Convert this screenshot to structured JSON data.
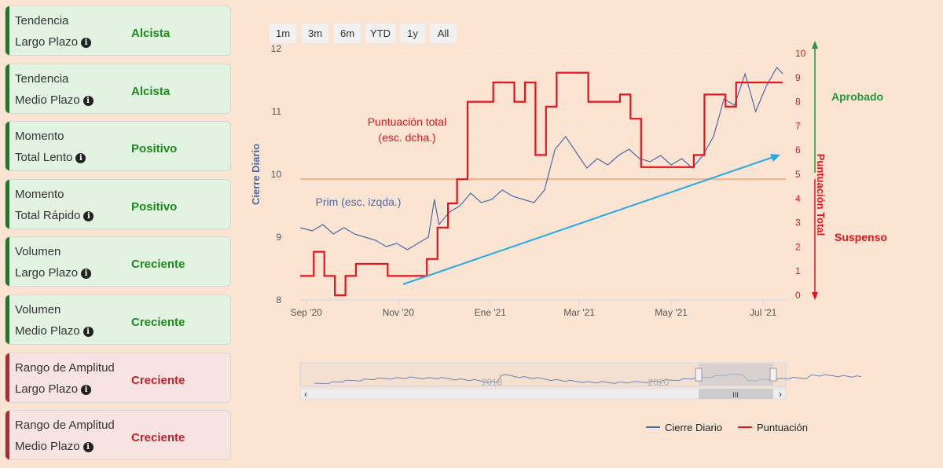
{
  "cards": [
    {
      "line1": "Tendencia",
      "line2": "Largo Plazo",
      "status": "Alcista",
      "tone": "green"
    },
    {
      "line1": "Tendencia",
      "line2": "Medio Plazo",
      "status": "Alcista",
      "tone": "green"
    },
    {
      "line1": "Momento",
      "line2": "Total Lento",
      "status": "Positivo",
      "tone": "green"
    },
    {
      "line1": "Momento",
      "line2": "Total Rápido",
      "status": "Positivo",
      "tone": "green"
    },
    {
      "line1": "Volumen",
      "line2": "Largo Plazo",
      "status": "Creciente",
      "tone": "green"
    },
    {
      "line1": "Volumen",
      "line2": "Medio Plazo",
      "status": "Creciente",
      "tone": "green"
    },
    {
      "line1": "Rango de Amplitud",
      "line2": "Largo Plazo",
      "status": "Creciente",
      "tone": "red"
    },
    {
      "line1": "Rango de Amplitud",
      "line2": "Medio Plazo",
      "status": "Creciente",
      "tone": "red"
    }
  ],
  "range_buttons": [
    "1m",
    "3m",
    "6m",
    "YTD",
    "1y",
    "All"
  ],
  "side_labels": {
    "approved": "Aprobado",
    "failed": "Suspenso"
  },
  "colors": {
    "price": "#4a6aa8",
    "score": "#e3141e",
    "threshold": "#f0b48a",
    "trend": "#27a9e8",
    "approved": "#1f9a3c",
    "failed": "#e3141e"
  },
  "chart_data": {
    "type": "line",
    "x_ticks": [
      "Sep '20",
      "Nov '20",
      "Ene '21",
      "Mar '21",
      "May '21",
      "Jul '21"
    ],
    "y_left": {
      "label": "Cierre Diario",
      "range": [
        8,
        12
      ],
      "ticks": [
        8,
        9,
        10,
        11,
        12
      ]
    },
    "y_right": {
      "label": "Puntuación Total",
      "range": [
        0,
        10
      ],
      "ticks": [
        0,
        1,
        2,
        3,
        4,
        5,
        6,
        7,
        8,
        9,
        10
      ]
    },
    "threshold_score": 4.8,
    "annotations": [
      {
        "text": "Puntuación total",
        "text2": "(esc. dcha.)"
      },
      {
        "text": "Prim (esc. izqda.)"
      }
    ],
    "series": [
      {
        "name": "Cierre Diario",
        "axis": "left",
        "points": [
          [
            "2020-08-28",
            9.15
          ],
          [
            "2020-09-05",
            9.1
          ],
          [
            "2020-09-12",
            9.2
          ],
          [
            "2020-09-19",
            9.05
          ],
          [
            "2020-09-26",
            9.15
          ],
          [
            "2020-10-03",
            9.05
          ],
          [
            "2020-10-10",
            9.0
          ],
          [
            "2020-10-17",
            8.95
          ],
          [
            "2020-10-24",
            8.85
          ],
          [
            "2020-10-31",
            8.9
          ],
          [
            "2020-11-07",
            8.8
          ],
          [
            "2020-11-14",
            8.9
          ],
          [
            "2020-11-21",
            9.0
          ],
          [
            "2020-11-25",
            9.6
          ],
          [
            "2020-11-28",
            9.2
          ],
          [
            "2020-12-05",
            9.4
          ],
          [
            "2020-12-12",
            9.5
          ],
          [
            "2020-12-19",
            9.7
          ],
          [
            "2020-12-26",
            9.55
          ],
          [
            "2021-01-02",
            9.6
          ],
          [
            "2021-01-09",
            9.75
          ],
          [
            "2021-01-16",
            9.65
          ],
          [
            "2021-01-23",
            9.6
          ],
          [
            "2021-01-30",
            9.55
          ],
          [
            "2021-02-06",
            9.75
          ],
          [
            "2021-02-13",
            10.4
          ],
          [
            "2021-02-20",
            10.6
          ],
          [
            "2021-02-27",
            10.35
          ],
          [
            "2021-03-06",
            10.1
          ],
          [
            "2021-03-13",
            10.25
          ],
          [
            "2021-03-20",
            10.15
          ],
          [
            "2021-03-27",
            10.3
          ],
          [
            "2021-04-03",
            10.4
          ],
          [
            "2021-04-10",
            10.25
          ],
          [
            "2021-04-17",
            10.2
          ],
          [
            "2021-04-24",
            10.3
          ],
          [
            "2021-05-01",
            10.15
          ],
          [
            "2021-05-08",
            10.25
          ],
          [
            "2021-05-15",
            10.1
          ],
          [
            "2021-05-22",
            10.3
          ],
          [
            "2021-05-29",
            10.6
          ],
          [
            "2021-06-05",
            11.2
          ],
          [
            "2021-06-12",
            11.1
          ],
          [
            "2021-06-19",
            11.6
          ],
          [
            "2021-06-26",
            11.0
          ],
          [
            "2021-07-03",
            11.4
          ],
          [
            "2021-07-10",
            11.7
          ],
          [
            "2021-07-14",
            11.6
          ]
        ]
      },
      {
        "name": "Puntuación",
        "axis": "right",
        "points": [
          [
            "2020-08-28",
            0.8
          ],
          [
            "2020-09-06",
            1.8
          ],
          [
            "2020-09-13",
            0.8
          ],
          [
            "2020-09-20",
            0
          ],
          [
            "2020-09-27",
            0.8
          ],
          [
            "2020-10-04",
            1.3
          ],
          [
            "2020-10-25",
            0.8
          ],
          [
            "2020-11-15",
            0.8
          ],
          [
            "2020-11-20",
            1.5
          ],
          [
            "2020-11-27",
            2.8
          ],
          [
            "2020-12-04",
            3.8
          ],
          [
            "2020-12-10",
            4.8
          ],
          [
            "2020-12-17",
            8
          ],
          [
            "2021-01-03",
            8.8
          ],
          [
            "2021-01-17",
            8
          ],
          [
            "2021-01-24",
            8.8
          ],
          [
            "2021-01-31",
            5.8
          ],
          [
            "2021-02-07",
            7.8
          ],
          [
            "2021-02-14",
            9.2
          ],
          [
            "2021-03-07",
            8
          ],
          [
            "2021-03-28",
            8.3
          ],
          [
            "2021-04-04",
            7.3
          ],
          [
            "2021-04-11",
            5.3
          ],
          [
            "2021-05-09",
            5.3
          ],
          [
            "2021-05-16",
            5.8
          ],
          [
            "2021-05-23",
            8.3
          ],
          [
            "2021-06-06",
            7.8
          ],
          [
            "2021-06-13",
            8.8
          ],
          [
            "2021-07-14",
            8.8
          ]
        ]
      }
    ]
  },
  "navigator": {
    "labels": [
      "2018",
      "2020"
    ]
  },
  "legend": [
    {
      "name": "Cierre Diario",
      "color": "#4a6aa8"
    },
    {
      "name": "Puntuación",
      "color": "#e3141e"
    }
  ]
}
